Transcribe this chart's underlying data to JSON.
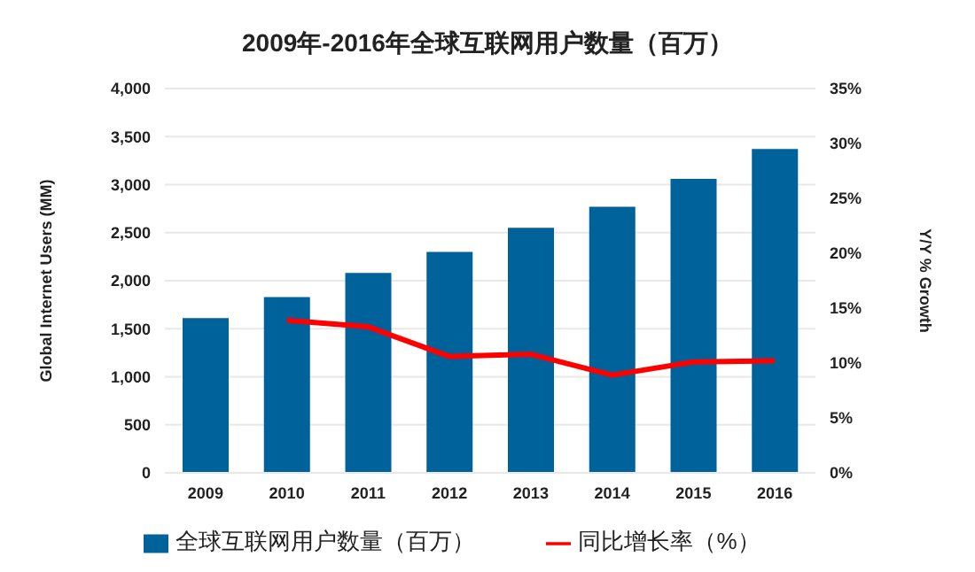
{
  "chart_data": {
    "type": "bar",
    "title": "2009年-2016年全球互联网用户数量（百万）",
    "ylabel": "Global Internet Users (MM)",
    "y2label": "Y/Y % Growth",
    "categories": [
      "2009",
      "2010",
      "2011",
      "2012",
      "2013",
      "2014",
      "2015",
      "2016"
    ],
    "series": [
      {
        "name": "全球互联网用户数量（百万）",
        "color": "#00629b",
        "values": [
          1610,
          1830,
          2080,
          2300,
          2550,
          2770,
          3060,
          3370
        ]
      },
      {
        "name": "同比增长率（%）",
        "type": "line",
        "axis": "y2",
        "color": "#ff0000",
        "values": [
          null,
          13.9,
          13.3,
          10.6,
          10.8,
          8.9,
          10.1,
          10.2
        ]
      }
    ],
    "ylim": [
      0,
      4000
    ],
    "yticks": [
      {
        "value": 0,
        "label": "0"
      },
      {
        "value": 500,
        "label": "500"
      },
      {
        "value": 1000,
        "label": "1,000"
      },
      {
        "value": 1500,
        "label": "1,500"
      },
      {
        "value": 2000,
        "label": "2,000"
      },
      {
        "value": 2500,
        "label": "2,500"
      },
      {
        "value": 3000,
        "label": "3,000"
      },
      {
        "value": 3500,
        "label": "3,500"
      },
      {
        "value": 4000,
        "label": "4,000"
      }
    ],
    "y2lim": [
      0,
      35
    ],
    "y2ticks": [
      {
        "value": 0,
        "label": "0%"
      },
      {
        "value": 5,
        "label": "5%"
      },
      {
        "value": 10,
        "label": "10%"
      },
      {
        "value": 15,
        "label": "15%"
      },
      {
        "value": 20,
        "label": "20%"
      },
      {
        "value": 25,
        "label": "25%"
      },
      {
        "value": 30,
        "label": "30%"
      },
      {
        "value": 35,
        "label": "35%"
      }
    ],
    "grid": "y",
    "legend": "bottom",
    "marker": "none",
    "line_style": "solid"
  }
}
